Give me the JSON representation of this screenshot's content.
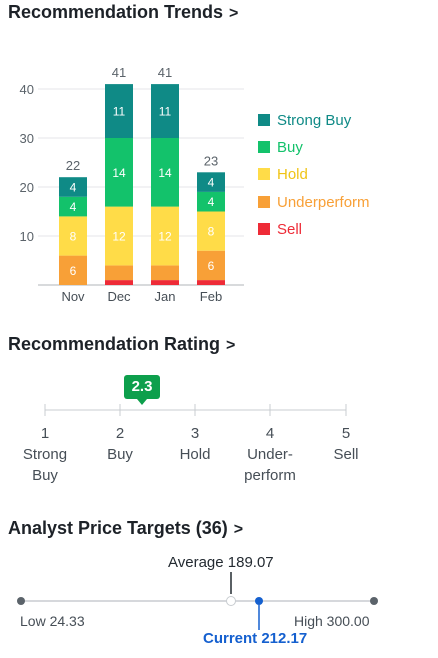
{
  "trends": {
    "title": "Recommendation Trends",
    "chevron": ">",
    "y_ticks": [
      "40",
      "30",
      "20",
      "10"
    ],
    "months": [
      {
        "label": "Nov",
        "total": "22",
        "strong_buy": "4",
        "buy": "4",
        "hold": "8",
        "underperform": "6",
        "sell": ""
      },
      {
        "label": "Dec",
        "total": "41",
        "strong_buy": "11",
        "buy": "14",
        "hold": "12",
        "underperform": "",
        "sell": ""
      },
      {
        "label": "Jan",
        "total": "41",
        "strong_buy": "11",
        "buy": "14",
        "hold": "12",
        "underperform": "",
        "sell": ""
      },
      {
        "label": "Feb",
        "total": "23",
        "strong_buy": "4",
        "buy": "4",
        "hold": "8",
        "underperform": "6",
        "sell": ""
      }
    ],
    "legend": [
      "Strong Buy",
      "Buy",
      "Hold",
      "Underperform",
      "Sell"
    ],
    "colors": {
      "strong_buy": "#0f8a86",
      "buy": "#13c26b",
      "hold": "#ffdc48",
      "underperform": "#f8a037",
      "sell": "#ee2b37"
    }
  },
  "chart_data": {
    "type": "bar",
    "stacked": true,
    "categories": [
      "Nov",
      "Dec",
      "Jan",
      "Feb"
    ],
    "ylim": [
      0,
      44
    ],
    "y_ticks": [
      10,
      20,
      30,
      40
    ],
    "totals": [
      22,
      41,
      41,
      23
    ],
    "series": [
      {
        "name": "Sell",
        "values": [
          0,
          1,
          1,
          1
        ]
      },
      {
        "name": "Underperform",
        "values": [
          6,
          3,
          3,
          6
        ]
      },
      {
        "name": "Hold",
        "values": [
          8,
          12,
          12,
          8
        ]
      },
      {
        "name": "Buy",
        "values": [
          4,
          14,
          14,
          4
        ]
      },
      {
        "name": "Strong Buy",
        "values": [
          4,
          11,
          11,
          4
        ]
      }
    ],
    "legend_position": "right"
  },
  "rating": {
    "title": "Recommendation Rating",
    "chevron": ">",
    "value": "2.3",
    "value_number": 2.3,
    "labels": [
      {
        "num": "1",
        "l1": "Strong",
        "l2": "Buy"
      },
      {
        "num": "2",
        "l1": "Buy",
        "l2": ""
      },
      {
        "num": "3",
        "l1": "Hold",
        "l2": ""
      },
      {
        "num": "4",
        "l1": "Under-",
        "l2": "perform"
      },
      {
        "num": "5",
        "l1": "Sell",
        "l2": ""
      }
    ]
  },
  "targets": {
    "title": "Analyst Price Targets (36)",
    "chevron": ">",
    "average_label": "Average 189.07",
    "low_label": "Low 24.33",
    "high_label": "High 300.00",
    "current_label": "Current 212.17",
    "low": 24.33,
    "high": 300.0,
    "average": 189.07,
    "current": 212.17,
    "current_color": "#1560cf"
  }
}
